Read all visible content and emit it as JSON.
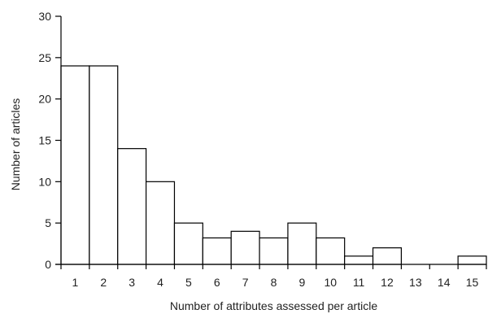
{
  "chart_data": {
    "type": "bar",
    "categories": [
      "1",
      "2",
      "3",
      "4",
      "5",
      "6",
      "7",
      "8",
      "9",
      "10",
      "11",
      "12",
      "13",
      "14",
      "15"
    ],
    "values": [
      24,
      24,
      14,
      10,
      5,
      3.2,
      4,
      3.2,
      5,
      3.2,
      1,
      2,
      0,
      0,
      1
    ],
    "title": "",
    "xlabel": "Number of attributes assessed per article",
    "ylabel": "Number of articles",
    "ylim": [
      0,
      30
    ],
    "yticks": [
      "0",
      "5",
      "10",
      "15",
      "20",
      "25",
      "30"
    ],
    "grid": false,
    "legend": "none"
  }
}
